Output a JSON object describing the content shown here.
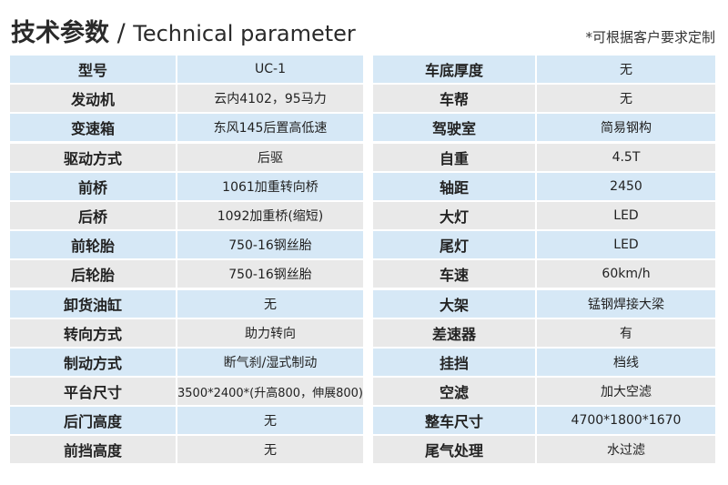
{
  "header": {
    "title_cn": "技术参数",
    "title_sep": " / ",
    "title_en": "Technical parameter",
    "note": "*可根据客户要求定制"
  },
  "colors": {
    "row_blue": "#d6e8f6",
    "row_grey": "#e9e9e9"
  },
  "left_table": [
    {
      "label": "型号",
      "value": "UC-1"
    },
    {
      "label": "发动机",
      "value": "云内4102，95马力"
    },
    {
      "label": "变速箱",
      "value": "东风145后置高低速"
    },
    {
      "label": "驱动方式",
      "value": "后驱"
    },
    {
      "label": "前桥",
      "value": "1061加重转向桥"
    },
    {
      "label": "后桥",
      "value": "1092加重桥(缩短)"
    },
    {
      "label": "前轮胎",
      "value": "750-16钢丝胎"
    },
    {
      "label": "后轮胎",
      "value": "750-16钢丝胎"
    },
    {
      "label": "卸货油缸",
      "value": "无"
    },
    {
      "label": "转向方式",
      "value": "助力转向"
    },
    {
      "label": "制动方式",
      "value": "断气刹/湿式制动"
    },
    {
      "label": "平台尺寸",
      "value": "3500*2400*(升高800，伸展800)"
    },
    {
      "label": "后门高度",
      "value": "无"
    },
    {
      "label": "前挡高度",
      "value": "无"
    }
  ],
  "right_table": [
    {
      "label": "车底厚度",
      "value": "无"
    },
    {
      "label": "车帮",
      "value": "无"
    },
    {
      "label": "驾驶室",
      "value": "简易钢构"
    },
    {
      "label": "自重",
      "value": "4.5T"
    },
    {
      "label": "轴距",
      "value": "2450"
    },
    {
      "label": "大灯",
      "value": "LED"
    },
    {
      "label": "尾灯",
      "value": "LED"
    },
    {
      "label": "车速",
      "value": "60km/h"
    },
    {
      "label": "大架",
      "value": "锰钢焊接大梁"
    },
    {
      "label": "差速器",
      "value": "有"
    },
    {
      "label": "挂挡",
      "value": "档线"
    },
    {
      "label": "空滤",
      "value": "加大空滤"
    },
    {
      "label": "整车尺寸",
      "value": "4700*1800*1670"
    },
    {
      "label": "尾气处理",
      "value": "水过滤"
    }
  ]
}
